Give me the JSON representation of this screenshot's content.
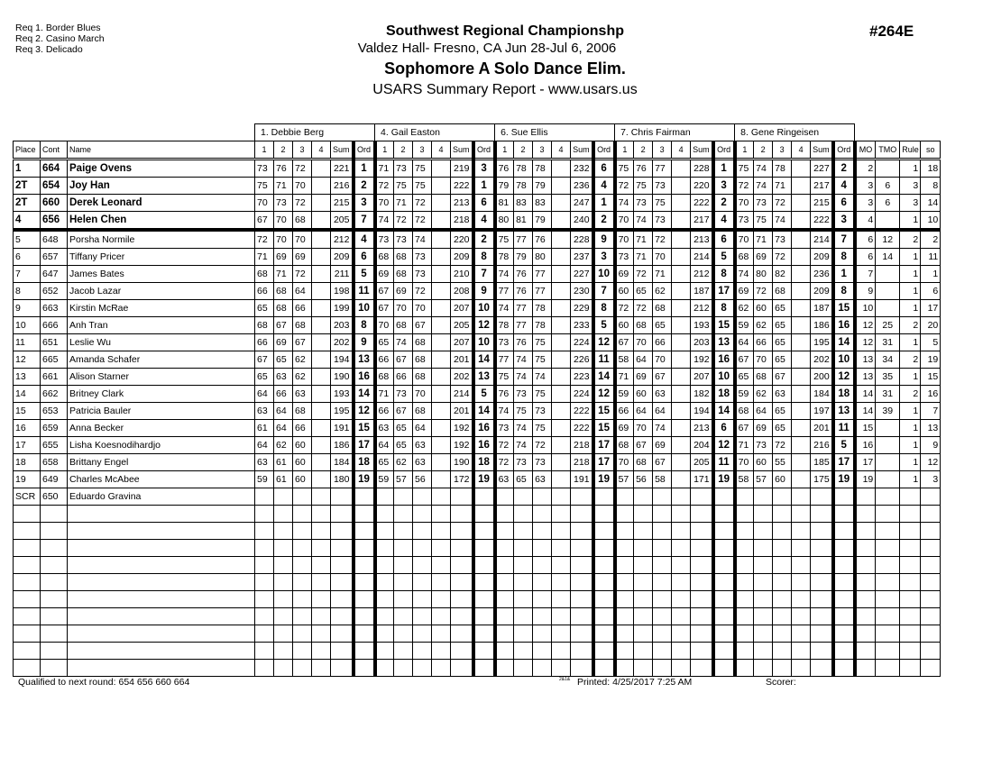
{
  "header": {
    "required": [
      "Req  1.  Border Blues",
      "Req  2.  Casino March",
      "Req  3.  Delicado"
    ],
    "title": "Southwest Regional Championshp",
    "venue": "Valdez Hall- Fresno, CA  Jun 28-Jul 6, 2006",
    "event": "Sophomore A Solo Dance Elim.",
    "report": "USARS Summary Report - www.usars.us",
    "event_number": "#264E"
  },
  "table": {
    "judges": [
      "1.  Debbie  Berg",
      "4.  Gail Easton",
      "6.  Sue Ellis",
      "7.  Chris Fairman",
      "8.  Gene Ringeisen"
    ],
    "columns": {
      "place": "Place",
      "cont": "Cont",
      "name": "Name",
      "judge_cols": [
        "1",
        "2",
        "3",
        "4",
        "Sum",
        "Ord"
      ],
      "mo": "MO",
      "tmo": "TMO",
      "rule": "Rule",
      "so": "so"
    },
    "qualified_count": 4,
    "rows": [
      {
        "place": "1",
        "cont": "664",
        "name": "Paige Ovens",
        "j": [
          [
            "73",
            "76",
            "72",
            "",
            "221",
            "1"
          ],
          [
            "71",
            "73",
            "75",
            "",
            "219",
            "3"
          ],
          [
            "76",
            "78",
            "78",
            "",
            "232",
            "6"
          ],
          [
            "75",
            "76",
            "77",
            "",
            "228",
            "1"
          ],
          [
            "75",
            "74",
            "78",
            "",
            "227",
            "2"
          ]
        ],
        "mo": "2",
        "tmo": "",
        "rule": "1",
        "so": "18"
      },
      {
        "place": "2T",
        "cont": "654",
        "name": "Joy Han",
        "j": [
          [
            "75",
            "71",
            "70",
            "",
            "216",
            "2"
          ],
          [
            "72",
            "75",
            "75",
            "",
            "222",
            "1"
          ],
          [
            "79",
            "78",
            "79",
            "",
            "236",
            "4"
          ],
          [
            "72",
            "75",
            "73",
            "",
            "220",
            "3"
          ],
          [
            "72",
            "74",
            "71",
            "",
            "217",
            "4"
          ]
        ],
        "mo": "3",
        "tmo": "6",
        "rule": "3",
        "so": "8"
      },
      {
        "place": "2T",
        "cont": "660",
        "name": "Derek Leonard",
        "j": [
          [
            "70",
            "73",
            "72",
            "",
            "215",
            "3"
          ],
          [
            "70",
            "71",
            "72",
            "",
            "213",
            "6"
          ],
          [
            "81",
            "83",
            "83",
            "",
            "247",
            "1"
          ],
          [
            "74",
            "73",
            "75",
            "",
            "222",
            "2"
          ],
          [
            "70",
            "73",
            "72",
            "",
            "215",
            "6"
          ]
        ],
        "mo": "3",
        "tmo": "6",
        "rule": "3",
        "so": "14"
      },
      {
        "place": "4",
        "cont": "656",
        "name": "Helen Chen",
        "j": [
          [
            "67",
            "70",
            "68",
            "",
            "205",
            "7"
          ],
          [
            "74",
            "72",
            "72",
            "",
            "218",
            "4"
          ],
          [
            "80",
            "81",
            "79",
            "",
            "240",
            "2"
          ],
          [
            "70",
            "74",
            "73",
            "",
            "217",
            "4"
          ],
          [
            "73",
            "75",
            "74",
            "",
            "222",
            "3"
          ]
        ],
        "mo": "4",
        "tmo": "",
        "rule": "1",
        "so": "10"
      },
      {
        "place": "5",
        "cont": "648",
        "name": "Porsha Normile",
        "j": [
          [
            "72",
            "70",
            "70",
            "",
            "212",
            "4"
          ],
          [
            "73",
            "73",
            "74",
            "",
            "220",
            "2"
          ],
          [
            "75",
            "77",
            "76",
            "",
            "228",
            "9"
          ],
          [
            "70",
            "71",
            "72",
            "",
            "213",
            "6"
          ],
          [
            "70",
            "71",
            "73",
            "",
            "214",
            "7"
          ]
        ],
        "mo": "6",
        "tmo": "12",
        "rule": "2",
        "so": "2"
      },
      {
        "place": "6",
        "cont": "657",
        "name": "Tiffany Pricer",
        "j": [
          [
            "71",
            "69",
            "69",
            "",
            "209",
            "6"
          ],
          [
            "68",
            "68",
            "73",
            "",
            "209",
            "8"
          ],
          [
            "78",
            "79",
            "80",
            "",
            "237",
            "3"
          ],
          [
            "73",
            "71",
            "70",
            "",
            "214",
            "5"
          ],
          [
            "68",
            "69",
            "72",
            "",
            "209",
            "8"
          ]
        ],
        "mo": "6",
        "tmo": "14",
        "rule": "1",
        "so": "11"
      },
      {
        "place": "7",
        "cont": "647",
        "name": "James Bates",
        "j": [
          [
            "68",
            "71",
            "72",
            "",
            "211",
            "5"
          ],
          [
            "69",
            "68",
            "73",
            "",
            "210",
            "7"
          ],
          [
            "74",
            "76",
            "77",
            "",
            "227",
            "10"
          ],
          [
            "69",
            "72",
            "71",
            "",
            "212",
            "8"
          ],
          [
            "74",
            "80",
            "82",
            "",
            "236",
            "1"
          ]
        ],
        "mo": "7",
        "tmo": "",
        "rule": "1",
        "so": "1"
      },
      {
        "place": "8",
        "cont": "652",
        "name": "Jacob Lazar",
        "j": [
          [
            "66",
            "68",
            "64",
            "",
            "198",
            "11"
          ],
          [
            "67",
            "69",
            "72",
            "",
            "208",
            "9"
          ],
          [
            "77",
            "76",
            "77",
            "",
            "230",
            "7"
          ],
          [
            "60",
            "65",
            "62",
            "",
            "187",
            "17"
          ],
          [
            "69",
            "72",
            "68",
            "",
            "209",
            "8"
          ]
        ],
        "mo": "9",
        "tmo": "",
        "rule": "1",
        "so": "6"
      },
      {
        "place": "9",
        "cont": "663",
        "name": "Kirstin McRae",
        "j": [
          [
            "65",
            "68",
            "66",
            "",
            "199",
            "10"
          ],
          [
            "67",
            "70",
            "70",
            "",
            "207",
            "10"
          ],
          [
            "74",
            "77",
            "78",
            "",
            "229",
            "8"
          ],
          [
            "72",
            "72",
            "68",
            "",
            "212",
            "8"
          ],
          [
            "62",
            "60",
            "65",
            "",
            "187",
            "15"
          ]
        ],
        "mo": "10",
        "tmo": "",
        "rule": "1",
        "so": "17"
      },
      {
        "place": "10",
        "cont": "666",
        "name": "Anh Tran",
        "j": [
          [
            "68",
            "67",
            "68",
            "",
            "203",
            "8"
          ],
          [
            "70",
            "68",
            "67",
            "",
            "205",
            "12"
          ],
          [
            "78",
            "77",
            "78",
            "",
            "233",
            "5"
          ],
          [
            "60",
            "68",
            "65",
            "",
            "193",
            "15"
          ],
          [
            "59",
            "62",
            "65",
            "",
            "186",
            "16"
          ]
        ],
        "mo": "12",
        "tmo": "25",
        "rule": "2",
        "so": "20"
      },
      {
        "place": "11",
        "cont": "651",
        "name": "Leslie Wu",
        "j": [
          [
            "66",
            "69",
            "67",
            "",
            "202",
            "9"
          ],
          [
            "65",
            "74",
            "68",
            "",
            "207",
            "10"
          ],
          [
            "73",
            "76",
            "75",
            "",
            "224",
            "12"
          ],
          [
            "67",
            "70",
            "66",
            "",
            "203",
            "13"
          ],
          [
            "64",
            "66",
            "65",
            "",
            "195",
            "14"
          ]
        ],
        "mo": "12",
        "tmo": "31",
        "rule": "1",
        "so": "5"
      },
      {
        "place": "12",
        "cont": "665",
        "name": "Amanda Schafer",
        "j": [
          [
            "67",
            "65",
            "62",
            "",
            "194",
            "13"
          ],
          [
            "66",
            "67",
            "68",
            "",
            "201",
            "14"
          ],
          [
            "77",
            "74",
            "75",
            "",
            "226",
            "11"
          ],
          [
            "58",
            "64",
            "70",
            "",
            "192",
            "16"
          ],
          [
            "67",
            "70",
            "65",
            "",
            "202",
            "10"
          ]
        ],
        "mo": "13",
        "tmo": "34",
        "rule": "2",
        "so": "19"
      },
      {
        "place": "13",
        "cont": "661",
        "name": "Alison Starner",
        "j": [
          [
            "65",
            "63",
            "62",
            "",
            "190",
            "16"
          ],
          [
            "68",
            "66",
            "68",
            "",
            "202",
            "13"
          ],
          [
            "75",
            "74",
            "74",
            "",
            "223",
            "14"
          ],
          [
            "71",
            "69",
            "67",
            "",
            "207",
            "10"
          ],
          [
            "65",
            "68",
            "67",
            "",
            "200",
            "12"
          ]
        ],
        "mo": "13",
        "tmo": "35",
        "rule": "1",
        "so": "15"
      },
      {
        "place": "14",
        "cont": "662",
        "name": "Britney Clark",
        "j": [
          [
            "64",
            "66",
            "63",
            "",
            "193",
            "14"
          ],
          [
            "71",
            "73",
            "70",
            "",
            "214",
            "5"
          ],
          [
            "76",
            "73",
            "75",
            "",
            "224",
            "12"
          ],
          [
            "59",
            "60",
            "63",
            "",
            "182",
            "18"
          ],
          [
            "59",
            "62",
            "63",
            "",
            "184",
            "18"
          ]
        ],
        "mo": "14",
        "tmo": "31",
        "rule": "2",
        "so": "16"
      },
      {
        "place": "15",
        "cont": "653",
        "name": "Patricia Bauler",
        "j": [
          [
            "63",
            "64",
            "68",
            "",
            "195",
            "12"
          ],
          [
            "66",
            "67",
            "68",
            "",
            "201",
            "14"
          ],
          [
            "74",
            "75",
            "73",
            "",
            "222",
            "15"
          ],
          [
            "66",
            "64",
            "64",
            "",
            "194",
            "14"
          ],
          [
            "68",
            "64",
            "65",
            "",
            "197",
            "13"
          ]
        ],
        "mo": "14",
        "tmo": "39",
        "rule": "1",
        "so": "7"
      },
      {
        "place": "16",
        "cont": "659",
        "name": "Anna Becker",
        "j": [
          [
            "61",
            "64",
            "66",
            "",
            "191",
            "15"
          ],
          [
            "63",
            "65",
            "64",
            "",
            "192",
            "16"
          ],
          [
            "73",
            "74",
            "75",
            "",
            "222",
            "15"
          ],
          [
            "69",
            "70",
            "74",
            "",
            "213",
            "6"
          ],
          [
            "67",
            "69",
            "65",
            "",
            "201",
            "11"
          ]
        ],
        "mo": "15",
        "tmo": "",
        "rule": "1",
        "so": "13"
      },
      {
        "place": "17",
        "cont": "655",
        "name": "Lisha Koesnodihardjo",
        "j": [
          [
            "64",
            "62",
            "60",
            "",
            "186",
            "17"
          ],
          [
            "64",
            "65",
            "63",
            "",
            "192",
            "16"
          ],
          [
            "72",
            "74",
            "72",
            "",
            "218",
            "17"
          ],
          [
            "68",
            "67",
            "69",
            "",
            "204",
            "12"
          ],
          [
            "71",
            "73",
            "72",
            "",
            "216",
            "5"
          ]
        ],
        "mo": "16",
        "tmo": "",
        "rule": "1",
        "so": "9"
      },
      {
        "place": "18",
        "cont": "658",
        "name": "Brittany Engel",
        "j": [
          [
            "63",
            "61",
            "60",
            "",
            "184",
            "18"
          ],
          [
            "65",
            "62",
            "63",
            "",
            "190",
            "18"
          ],
          [
            "72",
            "73",
            "73",
            "",
            "218",
            "17"
          ],
          [
            "70",
            "68",
            "67",
            "",
            "205",
            "11"
          ],
          [
            "70",
            "60",
            "55",
            "",
            "185",
            "17"
          ]
        ],
        "mo": "17",
        "tmo": "",
        "rule": "1",
        "so": "12"
      },
      {
        "place": "19",
        "cont": "649",
        "name": "Charles McAbee",
        "j": [
          [
            "59",
            "61",
            "60",
            "",
            "180",
            "19"
          ],
          [
            "59",
            "57",
            "56",
            "",
            "172",
            "19"
          ],
          [
            "63",
            "65",
            "63",
            "",
            "191",
            "19"
          ],
          [
            "57",
            "56",
            "58",
            "",
            "171",
            "19"
          ],
          [
            "58",
            "57",
            "60",
            "",
            "175",
            "19"
          ]
        ],
        "mo": "19",
        "tmo": "",
        "rule": "1",
        "so": "3"
      },
      {
        "place": "SCR",
        "cont": "650",
        "name": "Eduardo Gravina",
        "j": [
          [
            "",
            "",
            "",
            "",
            "",
            ""
          ],
          [
            "",
            "",
            "",
            "",
            "",
            ""
          ],
          [
            "",
            "",
            "",
            "",
            "",
            ""
          ],
          [
            "",
            "",
            "",
            "",
            "",
            ""
          ],
          [
            "",
            "",
            "",
            "",
            "",
            ""
          ]
        ],
        "mo": "",
        "tmo": "",
        "rule": "",
        "so": ""
      }
    ],
    "blank_rows": 10
  },
  "footer": {
    "qualified": "Qualified to next round:   654 656 660 664",
    "code": "2&1&",
    "printed": "Printed:  4/25/2017  7:25 AM",
    "scorer": "Scorer:"
  }
}
